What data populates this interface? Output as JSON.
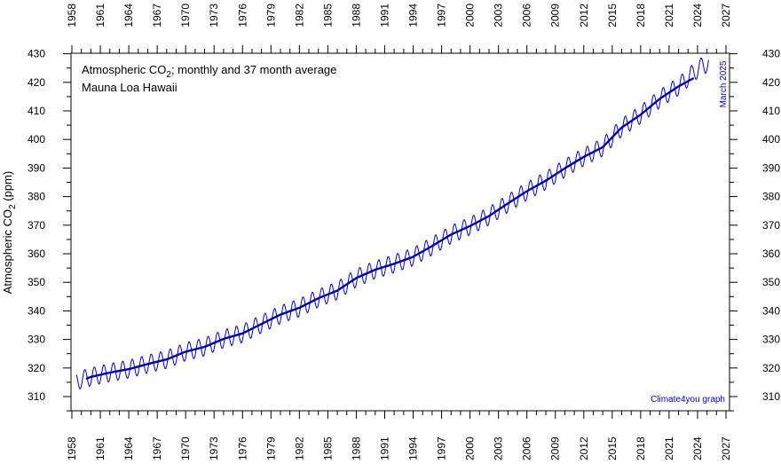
{
  "chart_data": {
    "type": "line",
    "title": "Atmospheric CO",
    "title_sub": "2",
    "title_tail": "; monthly and 37 month average",
    "subtitle": "Mauna Loa Hawaii",
    "ylabel": "Atmospheric CO",
    "ylabel_sub": "2",
    "ylabel_tail": " (ppm)",
    "annotation_date": "March 2025",
    "credit": "Climate4you graph",
    "xlim": [
      1958,
      2027
    ],
    "ylim": [
      305,
      430
    ],
    "x_ticks": [
      "1958",
      "1961",
      "1964",
      "1967",
      "1970",
      "1973",
      "1976",
      "1979",
      "1982",
      "1985",
      "1988",
      "1991",
      "1994",
      "1997",
      "2000",
      "2003",
      "2006",
      "2009",
      "2012",
      "2015",
      "2018",
      "2021",
      "2024",
      "2027"
    ],
    "y_ticks": [
      "310",
      "320",
      "330",
      "340",
      "350",
      "360",
      "370",
      "380",
      "390",
      "400",
      "410",
      "420",
      "430"
    ],
    "grid": false,
    "colors": {
      "monthly": "#0000cc",
      "average": "#0000aa",
      "annotation": "#0000cc"
    },
    "series": [
      {
        "style": "thin",
        "note": "monthly values (seasonal cycle amplitude ~6 ppm around the trend)",
        "x": [
          1958.5,
          1960,
          1962,
          1964,
          1966,
          1968,
          1970,
          1972,
          1974,
          1976,
          1978,
          1980,
          1982,
          1984,
          1986,
          1988,
          1990,
          1992,
          1994,
          1996,
          1998,
          2000,
          2002,
          2004,
          2006,
          2008,
          2010,
          2012,
          2014,
          2016,
          2018,
          2020,
          2022,
          2024,
          2025.2
        ],
        "y": [
          315.5,
          316.9,
          318.4,
          319.6,
          321.4,
          323.0,
          325.7,
          327.4,
          330.2,
          332.1,
          335.4,
          338.7,
          341.1,
          344.4,
          347.1,
          351.5,
          354.4,
          356.5,
          358.9,
          362.7,
          366.7,
          369.7,
          373.2,
          377.6,
          381.9,
          385.6,
          389.9,
          393.9,
          397.3,
          404.2,
          408.7,
          414.2,
          418.6,
          424.6,
          427.0
        ],
        "seasonal_amplitude": 3.2
      },
      {
        "style": "thick",
        "note": "37 month running average",
        "x": [
          1959.5,
          1960,
          1962,
          1964,
          1966,
          1968,
          1970,
          1972,
          1974,
          1976,
          1978,
          1980,
          1982,
          1984,
          1986,
          1988,
          1990,
          1992,
          1994,
          1996,
          1998,
          2000,
          2002,
          2004,
          2006,
          2008,
          2010,
          2012,
          2014,
          2016,
          2018,
          2020,
          2022,
          2023.6
        ],
        "y": [
          316.2,
          316.9,
          318.4,
          319.6,
          321.4,
          323.0,
          325.7,
          327.4,
          330.2,
          332.1,
          335.4,
          338.7,
          341.1,
          344.4,
          347.1,
          351.5,
          354.4,
          356.5,
          358.9,
          362.7,
          366.7,
          369.7,
          373.2,
          377.6,
          381.9,
          385.6,
          389.9,
          393.9,
          397.3,
          404.2,
          408.7,
          414.2,
          418.6,
          421.5
        ]
      }
    ]
  }
}
